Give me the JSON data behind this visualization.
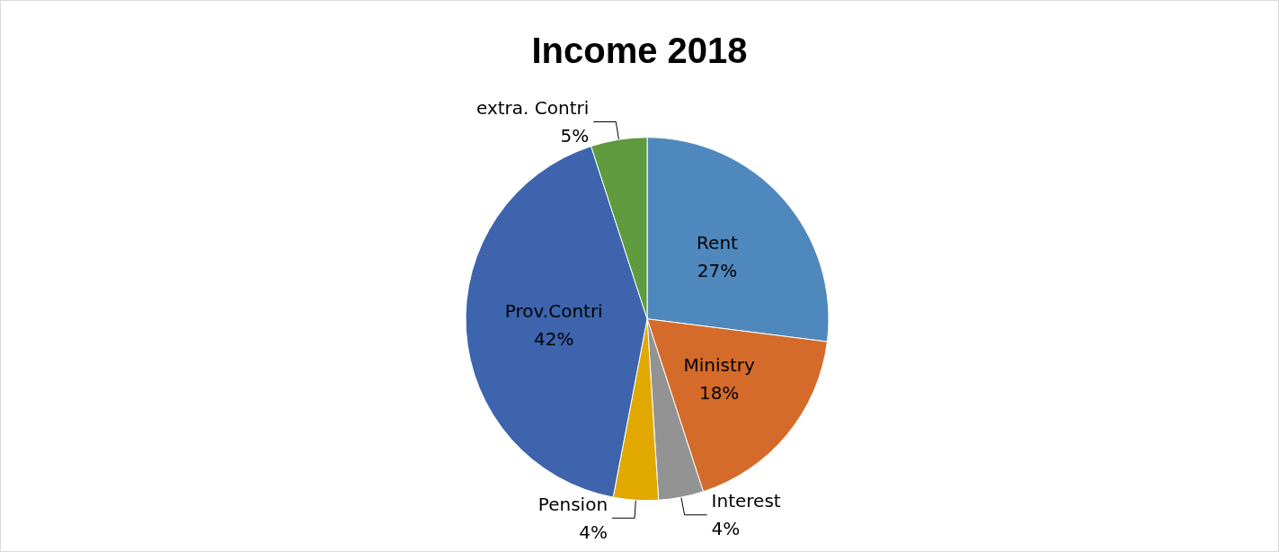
{
  "chart_data": {
    "type": "pie",
    "title": "Income 2018",
    "categories": [
      "Rent",
      "Ministry",
      "Interest",
      "Pension",
      "Prov.Contri",
      "extra. Contri"
    ],
    "values": [
      27,
      18,
      4,
      4,
      42,
      5
    ],
    "colors": [
      "#4f88bd",
      "#d46b2a",
      "#939393",
      "#e1a800",
      "#3d64ad",
      "#5f9a3f"
    ],
    "value_labels": [
      "27%",
      "18%",
      "4%",
      "4%",
      "42%",
      "5%"
    ]
  }
}
